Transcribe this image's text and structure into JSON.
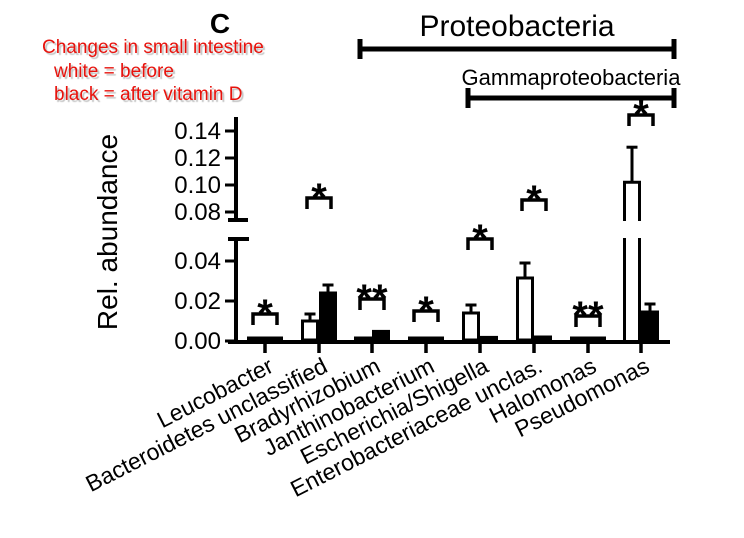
{
  "figure": {
    "panel_label": "C",
    "annotation": {
      "color": "#e8120c",
      "lines": [
        "Changes in small intestine",
        "white = before",
        "black = after vitamin D"
      ]
    }
  },
  "chart_data": {
    "type": "bar",
    "title": "Changes in small intestine",
    "ylabel": "Rel. abundance",
    "xlabel": "",
    "grid": false,
    "legend": {
      "white": "before",
      "black": "after vitamin D"
    },
    "categories": [
      "Leucobacter",
      "Bacteroidetes unclassified",
      "Bradyrhizobium",
      "Janthinobacterium",
      "Escherichia/Shigella",
      "Enterobacteriaceae unclas.",
      "Halomonas",
      "Pseudomonas"
    ],
    "series": [
      {
        "name": "before",
        "fill": "#ffffff",
        "values": [
          0.0015,
          0.01,
          0.0006,
          0.0006,
          0.014,
          0.0315,
          0.0006,
          0.102
        ],
        "errors": [
          0,
          0.0035,
          0,
          0,
          0.004,
          0.0075,
          0,
          0.026
        ]
      },
      {
        "name": "after vitamin D",
        "fill": "#000000",
        "values": [
          0.0005,
          0.024,
          0.0048,
          0.0012,
          0.0018,
          0.002,
          0.0012,
          0.0145
        ],
        "errors": [
          0,
          0.004,
          0,
          0,
          0,
          0,
          0,
          0.004
        ]
      }
    ],
    "significance": [
      "*",
      "*",
      "**",
      "*",
      "*",
      "*",
      "**",
      "*"
    ],
    "group_brackets": [
      {
        "label": "Proteobacteria",
        "from": "Bradyrhizobium",
        "to": "Pseudomonas"
      },
      {
        "label": "Gammaproteobacteria",
        "from": "Escherichia/Shigella",
        "to": "Pseudomonas"
      }
    ],
    "y_axis": {
      "break": true,
      "lower_ticks": [
        0.0,
        0.02,
        0.04
      ],
      "upper_ticks": [
        0.08,
        0.1,
        0.12,
        0.14
      ],
      "lower_range": [
        0,
        0.05
      ],
      "upper_range": [
        0.08,
        0.155
      ]
    }
  }
}
